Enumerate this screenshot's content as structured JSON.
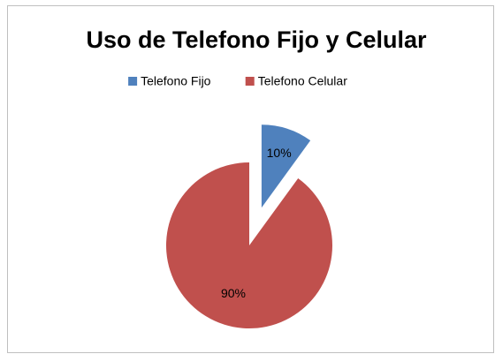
{
  "chart_data": {
    "type": "pie",
    "title": "Uso de Telefono Fijo y Celular",
    "categories": [
      "Telefono Fijo",
      "Telefono Celular"
    ],
    "values": [
      10,
      90
    ],
    "value_labels": [
      "10%",
      "90%"
    ],
    "colors": [
      "#4f81bd",
      "#c0504d"
    ],
    "legend": "top"
  }
}
